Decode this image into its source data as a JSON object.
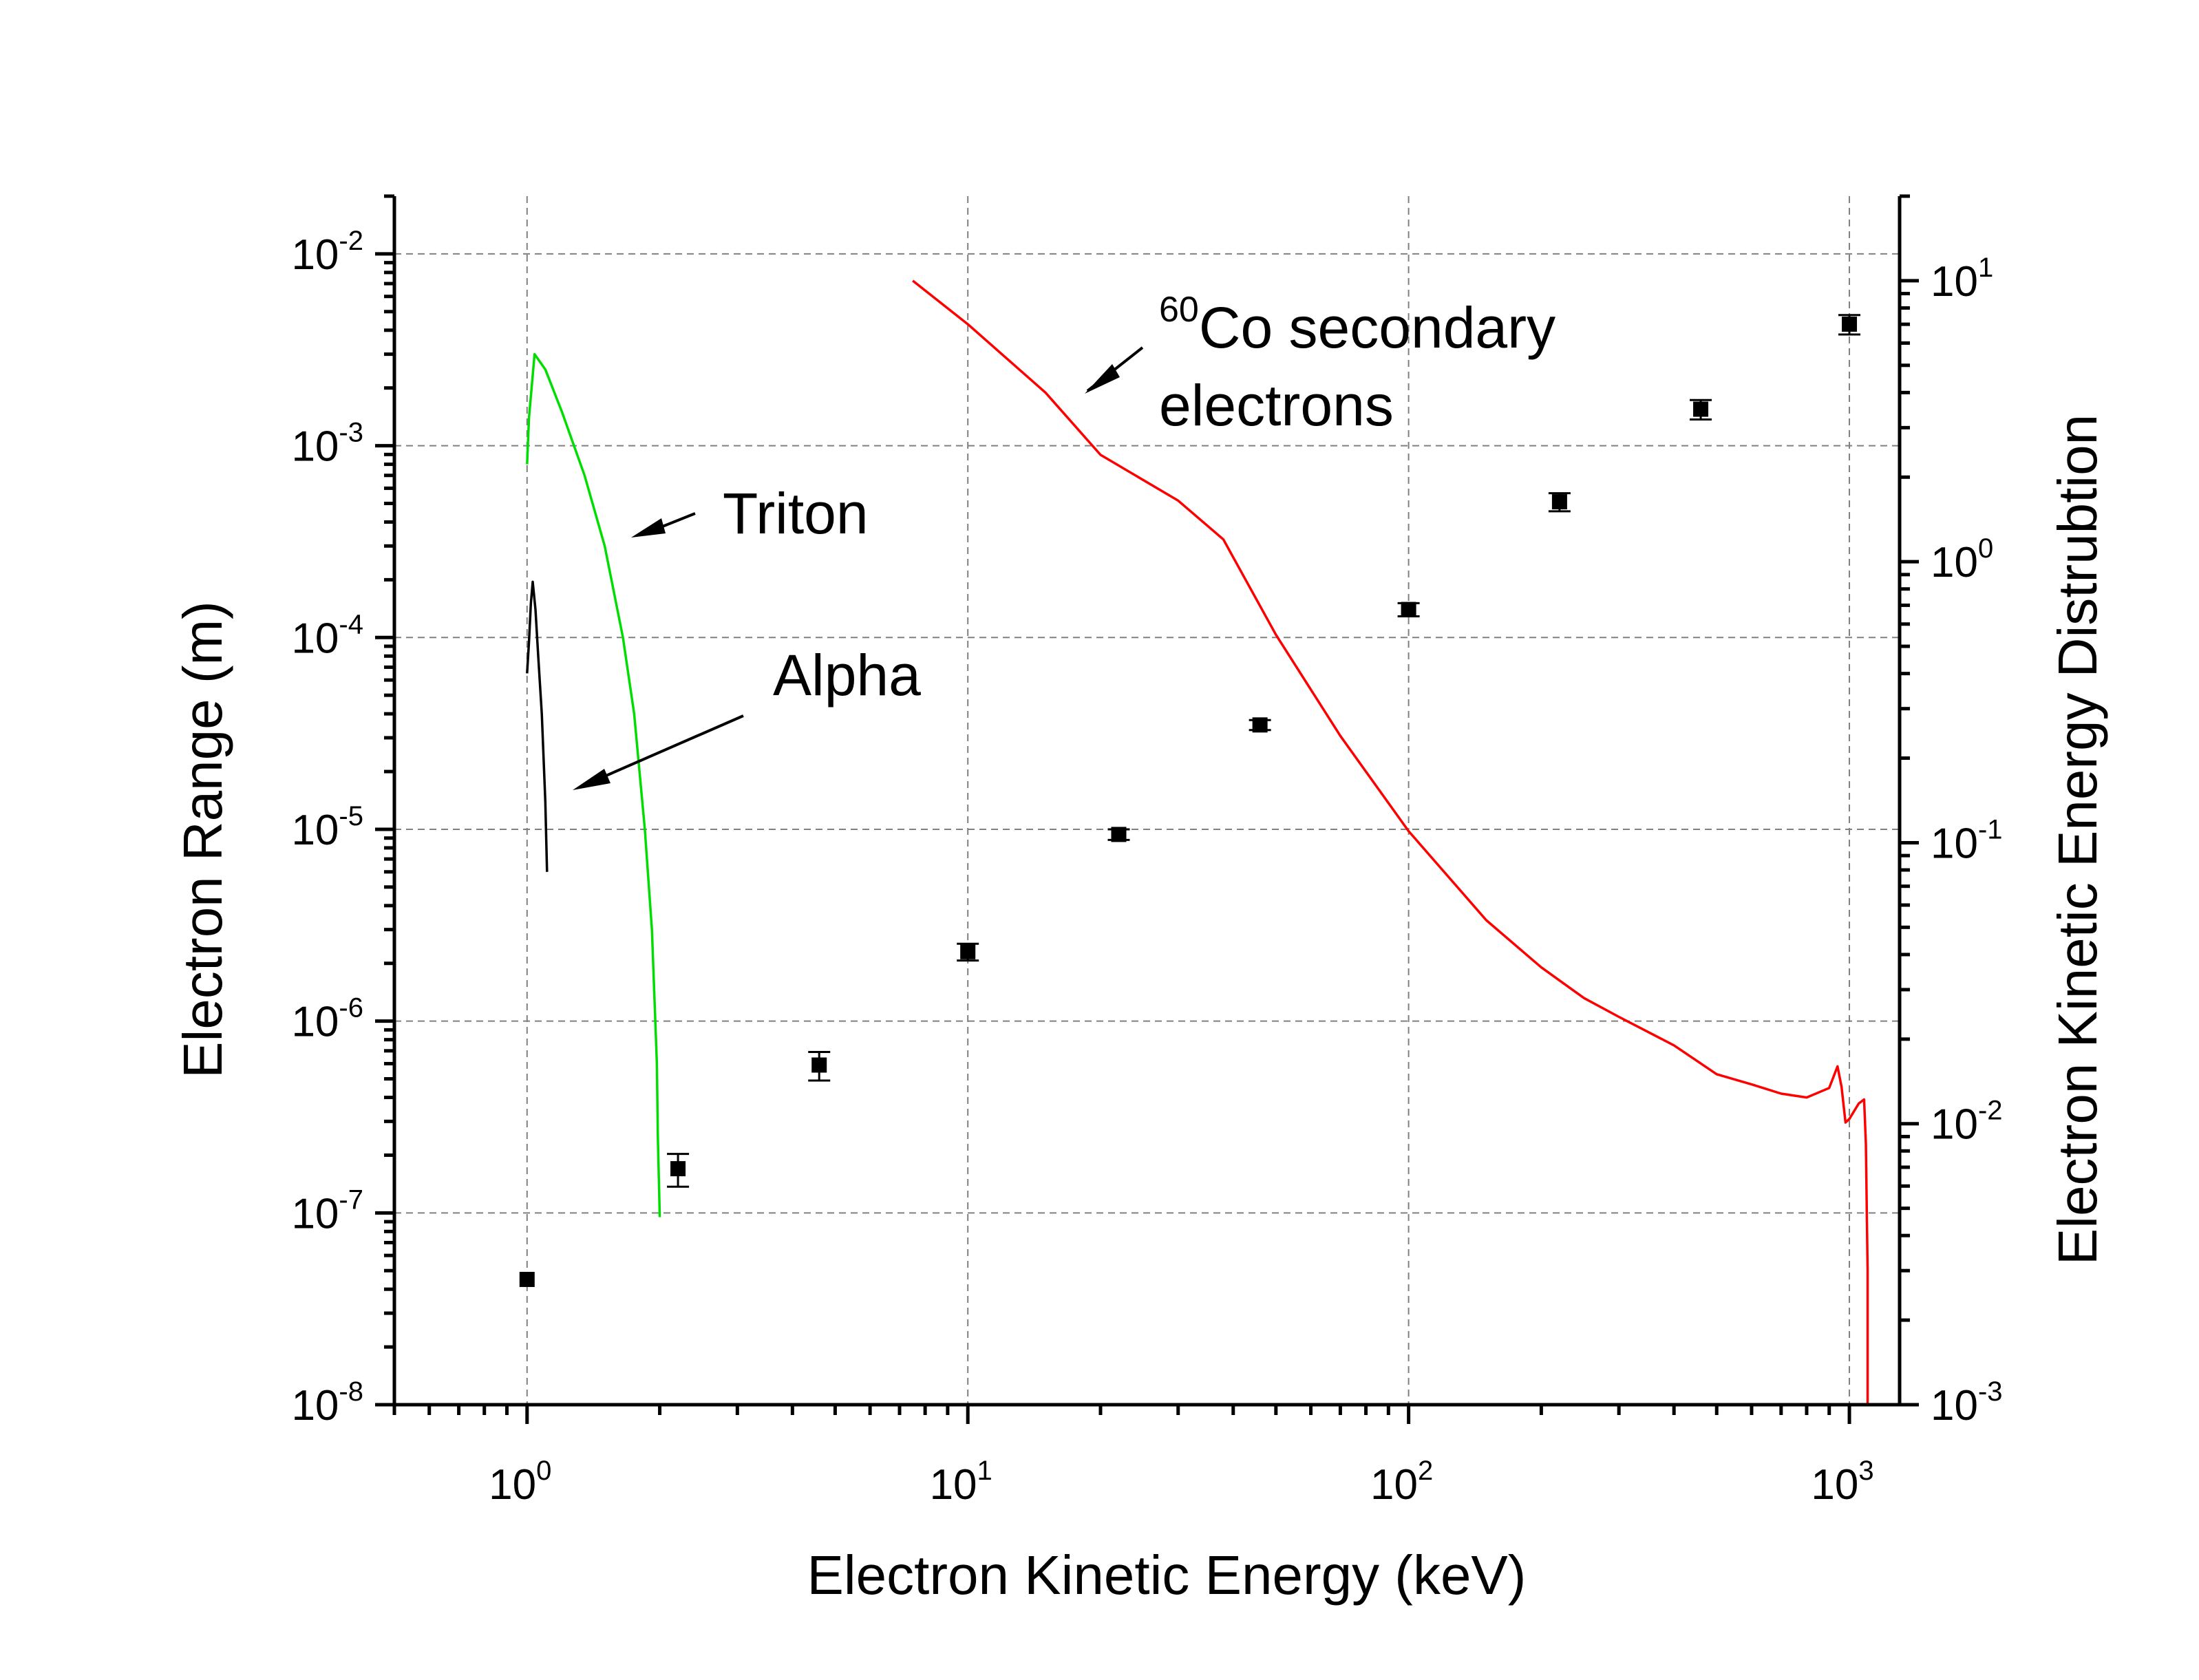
{
  "chart_data": {
    "type": "line",
    "xlabel": "Electron Kinetic Energy (keV)",
    "ylabel": "Electron Range (m)",
    "y2label": "Electron Kinetic Energy Distrubtion",
    "xscale": "log",
    "yscale": "log",
    "y2scale": "log",
    "xlim": [
      0.5,
      1300
    ],
    "ylim": [
      1e-08,
      0.02
    ],
    "y2lim": [
      0.001,
      20
    ],
    "x_tick_labels": [
      {
        "base": "10",
        "exp": "0"
      },
      {
        "base": "10",
        "exp": "1"
      },
      {
        "base": "10",
        "exp": "2"
      },
      {
        "base": "10",
        "exp": "3"
      }
    ],
    "y_tick_labels": [
      {
        "base": "10",
        "exp": "-2"
      },
      {
        "base": "10",
        "exp": "-3"
      },
      {
        "base": "10",
        "exp": "-4"
      },
      {
        "base": "10",
        "exp": "-5"
      },
      {
        "base": "10",
        "exp": "-6"
      },
      {
        "base": "10",
        "exp": "-7"
      },
      {
        "base": "10",
        "exp": "-8"
      }
    ],
    "y2_tick_labels": [
      {
        "base": "10",
        "exp": "1"
      },
      {
        "base": "10",
        "exp": "0"
      },
      {
        "base": "10",
        "exp": "-1"
      },
      {
        "base": "10",
        "exp": "-2"
      },
      {
        "base": "10",
        "exp": "-3"
      }
    ],
    "grid": true,
    "series": [
      {
        "axis": "left",
        "kind": "scatter-errorbar",
        "color": "#000000",
        "points": [
          {
            "x": 1.0,
            "y": 4.5e-08,
            "err": 0
          },
          {
            "x": 2.2,
            "y": 1.7e-07,
            "err": 3.3e-08
          },
          {
            "x": 4.6,
            "y": 5.9e-07,
            "err": 1e-07
          },
          {
            "x": 10,
            "y": 2.3e-06,
            "err": 2.3e-07
          },
          {
            "x": 22,
            "y": 9.4e-06,
            "err": 6e-07
          },
          {
            "x": 46,
            "y": 3.5e-05,
            "err": 2.1e-06
          },
          {
            "x": 100,
            "y": 0.00014,
            "err": 1.1e-05
          },
          {
            "x": 220,
            "y": 0.00051,
            "err": 5.5e-05
          },
          {
            "x": 460,
            "y": 0.00155,
            "err": 0.00018
          },
          {
            "x": 1000,
            "y": 0.0043,
            "err": 0.0005
          }
        ]
      },
      {
        "axis": "right",
        "kind": "line",
        "color": "#ff0000",
        "annotation": "electrons",
        "x": [
          7.5,
          10,
          15,
          20,
          30,
          38,
          50,
          70,
          100,
          150,
          200,
          250,
          300,
          400,
          500,
          600,
          700,
          800,
          900,
          940,
          960,
          980,
          1000,
          1050,
          1080,
          1090,
          1100,
          1100
        ],
        "y": [
          10,
          7.0,
          4.0,
          2.4,
          1.65,
          1.2,
          0.55,
          0.24,
          0.11,
          0.053,
          0.036,
          0.028,
          0.024,
          0.019,
          0.015,
          0.0138,
          0.0128,
          0.0124,
          0.0134,
          0.016,
          0.0135,
          0.0101,
          0.0104,
          0.0118,
          0.0122,
          0.0085,
          0.003,
          0.001
        ]
      },
      {
        "axis": "left",
        "kind": "line",
        "color": "#00dd00",
        "annotation": "Triton",
        "x": [
          1.0,
          1.01,
          1.04,
          1.1,
          1.2,
          1.35,
          1.5,
          1.65,
          1.75,
          1.85,
          1.92,
          1.97,
          1.98,
          2.0
        ],
        "y": [
          0.0008,
          0.0014,
          0.003,
          0.0025,
          0.0015,
          0.0007,
          0.0003,
          0.0001,
          4e-05,
          1e-05,
          3e-06,
          6e-07,
          2.5e-07,
          9.5e-08
        ]
      },
      {
        "axis": "left",
        "kind": "line",
        "color": "#000000",
        "annotation": "Alpha",
        "x": [
          1.0,
          1.01,
          1.02,
          1.03,
          1.045,
          1.06,
          1.08,
          1.1,
          1.11
        ],
        "y": [
          6.5e-05,
          9.5e-05,
          0.00015,
          0.000195,
          0.00014,
          8e-05,
          4e-05,
          1.4e-05,
          6e-06
        ]
      }
    ],
    "annotations": [
      {
        "sup": "60",
        "text": "Co secondary"
      },
      {
        "text": "electrons"
      },
      {
        "text": "Triton"
      },
      {
        "text": "Alpha"
      }
    ]
  }
}
